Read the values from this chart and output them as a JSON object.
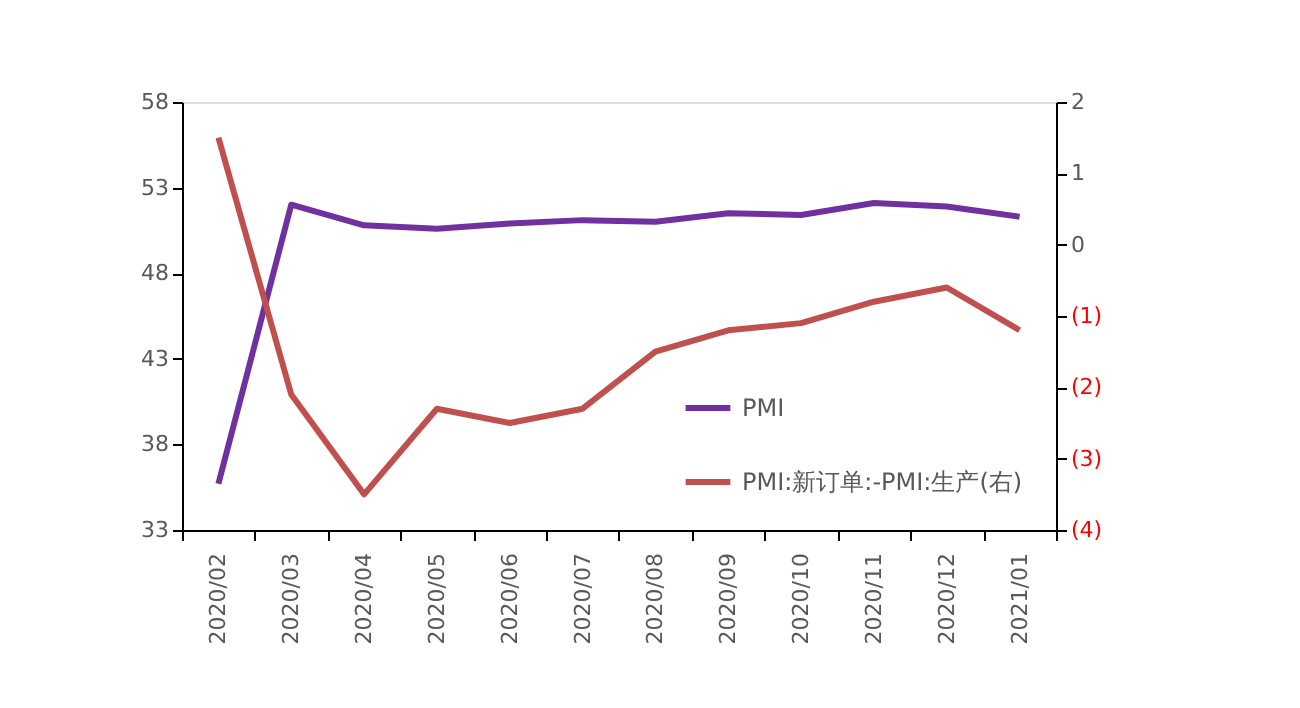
{
  "chart_data": {
    "type": "line",
    "categories": [
      "2020/02",
      "2020/03",
      "2020/04",
      "2020/05",
      "2020/06",
      "2020/07",
      "2020/08",
      "2020/09",
      "2020/10",
      "2020/11",
      "2020/12",
      "2021/01"
    ],
    "series": [
      {
        "name": "PMI",
        "color": "#7030a0",
        "values": [
          35.7,
          52.0,
          50.8,
          50.6,
          50.9,
          51.1,
          51.0,
          51.5,
          51.4,
          52.1,
          51.9,
          51.3
        ]
      },
      {
        "name": "PMI:新订单:-PMI:生产(右)",
        "color": "#c0504d",
        "axis": "y2",
        "values": [
          1.5,
          -2.1,
          -3.5,
          -2.3,
          -2.5,
          -2.3,
          -1.5,
          -1.2,
          -1.1,
          -0.8,
          -0.6,
          -1.2
        ]
      }
    ],
    "ylim": [
      33,
      58
    ],
    "yticks": [
      33,
      38,
      43,
      48,
      53,
      58
    ],
    "y2lim": [
      -4,
      2
    ],
    "y2ticks": [
      {
        "value": -4,
        "label": "(4)"
      },
      {
        "value": -3,
        "label": "(3)"
      },
      {
        "value": -2,
        "label": "(2)"
      },
      {
        "value": -1,
        "label": "(1)"
      },
      0,
      1,
      2
    ],
    "grid": false,
    "legend": "bottom right",
    "marker": "none",
    "line_style": "solid"
  }
}
